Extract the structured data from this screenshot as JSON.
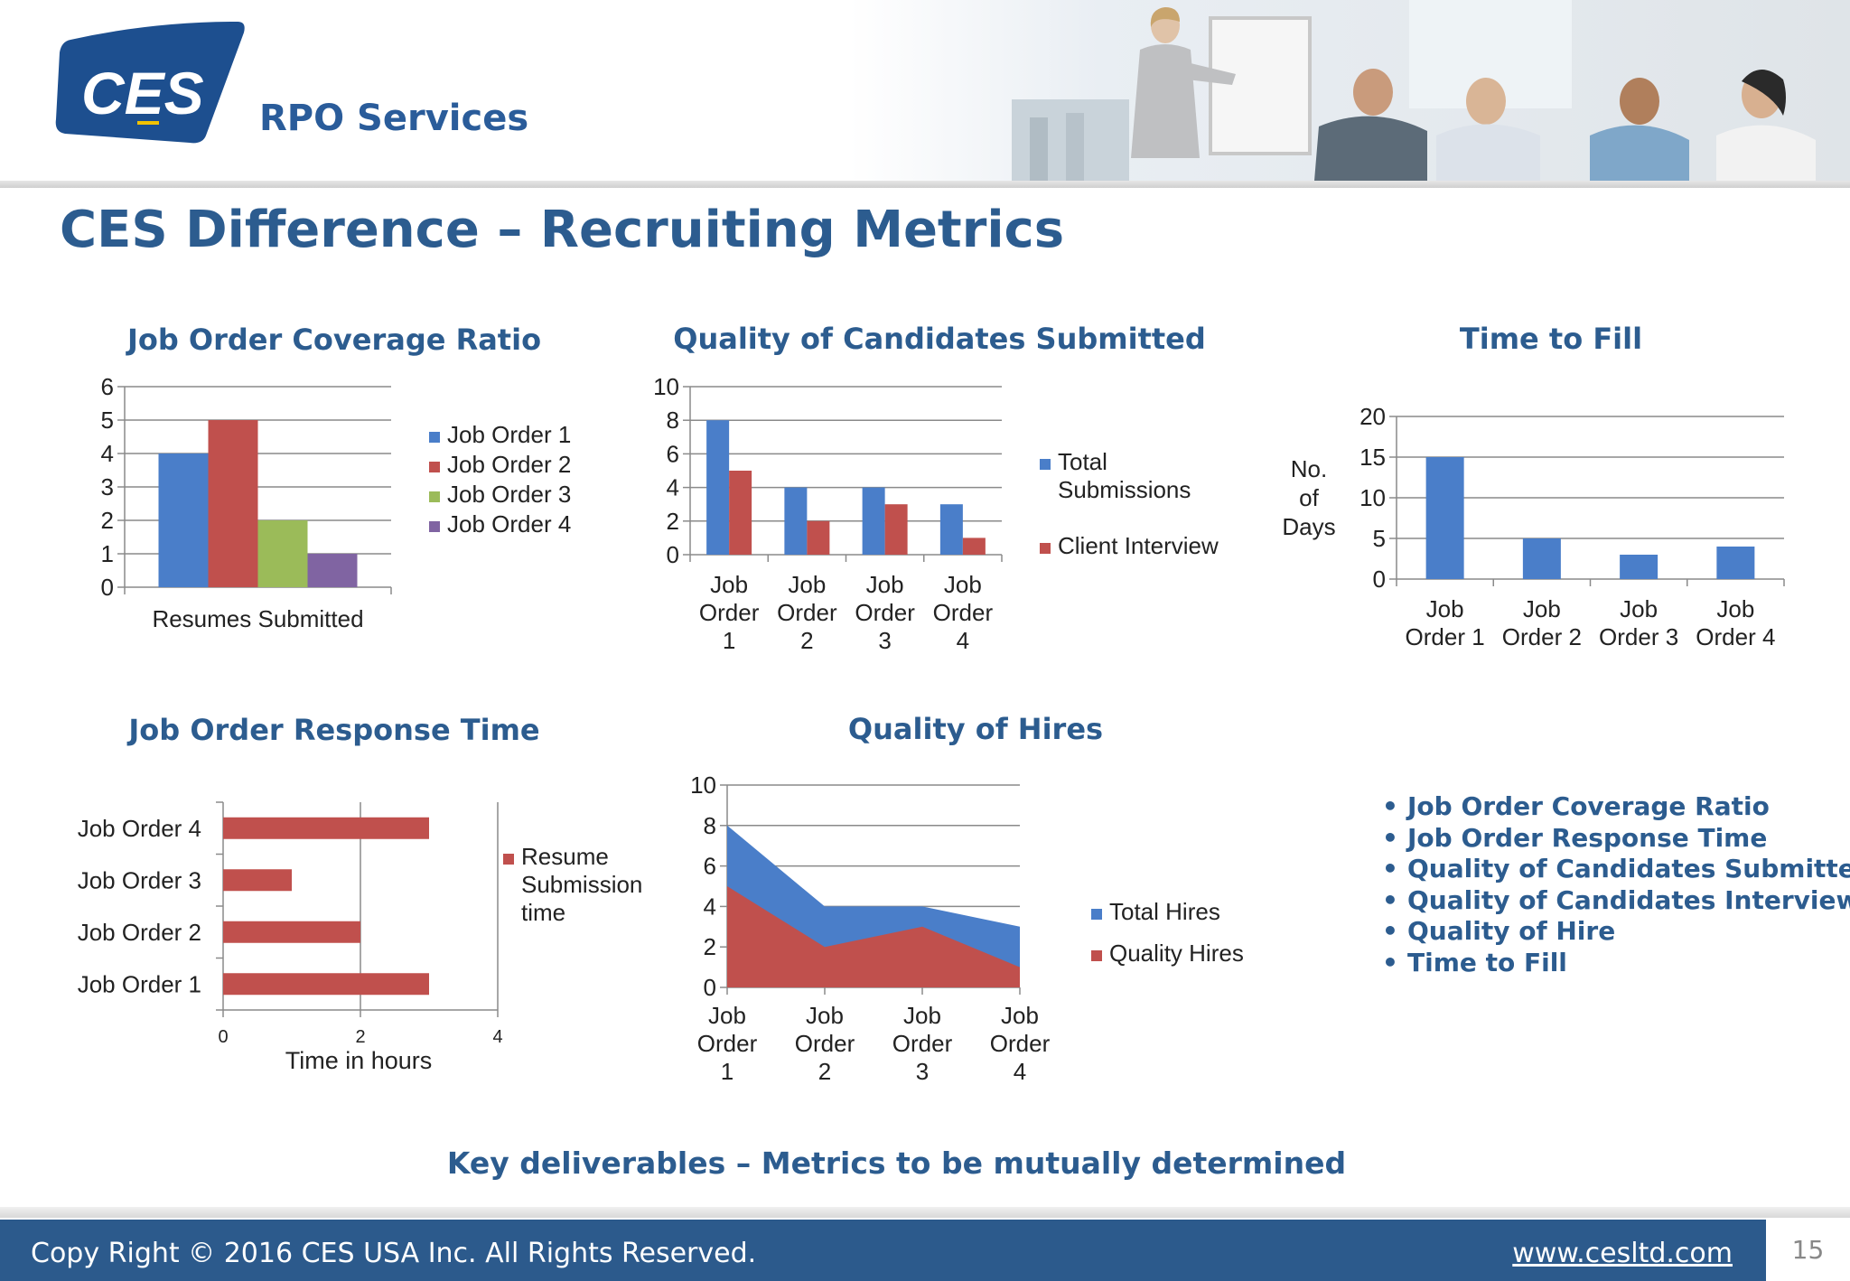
{
  "header": {
    "logo_text": "CES",
    "brand": "RPO Services",
    "title": "CES Difference – Recruiting Metrics"
  },
  "colors": {
    "blue": "#4a7ec9",
    "red": "#c0504d",
    "green": "#9bbb59",
    "purple": "#8064a2",
    "title": "#2c5c8f"
  },
  "chart_data": [
    {
      "type": "bar",
      "title": "Job Order Coverage Ratio",
      "categories": [
        "Resumes Submitted"
      ],
      "series": [
        {
          "name": "Job Order 1",
          "values": [
            4
          ],
          "color": "#4a7ec9"
        },
        {
          "name": "Job Order 2",
          "values": [
            5
          ],
          "color": "#c0504d"
        },
        {
          "name": "Job Order 3",
          "values": [
            2
          ],
          "color": "#9bbb59"
        },
        {
          "name": "Job Order 4",
          "values": [
            1
          ],
          "color": "#8064a2"
        }
      ],
      "ylim": [
        0,
        6
      ],
      "yticks": [
        "0",
        "1",
        "2",
        "3",
        "4",
        "5",
        "6"
      ],
      "grid": true,
      "legend": "right"
    },
    {
      "type": "bar",
      "title": "Quality of Candidates Submitted",
      "categories": [
        [
          "Job",
          "Order",
          "1"
        ],
        [
          "Job",
          "Order",
          "2"
        ],
        [
          "Job",
          "Order",
          "3"
        ],
        [
          "Job",
          "Order",
          "4"
        ]
      ],
      "series": [
        {
          "name": [
            "Total",
            "Submissions"
          ],
          "values": [
            8,
            4,
            4,
            3
          ],
          "color": "#4a7ec9"
        },
        {
          "name": [
            "Client Interview"
          ],
          "values": [
            5,
            2,
            3,
            1
          ],
          "color": "#c0504d"
        }
      ],
      "ylim": [
        0,
        10
      ],
      "yticks": [
        "0",
        "2",
        "4",
        "6",
        "8",
        "10"
      ],
      "grid": true,
      "legend": "right"
    },
    {
      "type": "bar",
      "title": "Time to Fill",
      "ylabel": [
        "No.",
        "of",
        "Days"
      ],
      "categories": [
        [
          "Job",
          "Order 1"
        ],
        [
          "Job",
          "Order 2"
        ],
        [
          "Job",
          "Order 3"
        ],
        [
          "Job",
          "Order 4"
        ]
      ],
      "series": [
        {
          "name": "",
          "values": [
            15,
            5,
            3,
            4
          ],
          "color": "#4a7ec9"
        }
      ],
      "ylim": [
        0,
        20
      ],
      "yticks": [
        "0",
        "5",
        "10",
        "15",
        "20"
      ],
      "grid": true,
      "legend": "none"
    },
    {
      "type": "bar",
      "orientation": "horizontal",
      "title": "Job Order Response Time",
      "xlabel": "Time in hours",
      "categories": [
        "Job Order 1",
        "Job Order 2",
        "Job Order 3",
        "Job Order 4"
      ],
      "series": [
        {
          "name": [
            "Resume",
            "Submission",
            "time"
          ],
          "values": [
            3,
            2,
            1,
            3
          ],
          "color": "#c0504d"
        }
      ],
      "xlim": [
        0,
        4
      ],
      "xticks": [
        "0",
        "2",
        "4"
      ],
      "grid": true,
      "legend": "right"
    },
    {
      "type": "area",
      "title": "Quality of Hires",
      "categories": [
        [
          "Job",
          "Order",
          "1"
        ],
        [
          "Job",
          "Order",
          "2"
        ],
        [
          "Job",
          "Order",
          "3"
        ],
        [
          "Job",
          "Order",
          "4"
        ]
      ],
      "series": [
        {
          "name": "Total Hires",
          "values": [
            8,
            4,
            4,
            3
          ],
          "color": "#4a7ec9"
        },
        {
          "name": "Quality Hires",
          "values": [
            5,
            2,
            3,
            1
          ],
          "color": "#c0504d"
        }
      ],
      "ylim": [
        0,
        10
      ],
      "yticks": [
        "0",
        "2",
        "4",
        "6",
        "8",
        "10"
      ],
      "grid": true,
      "legend": "right"
    }
  ],
  "bullets": [
    "Job Order Coverage Ratio",
    "Job Order Response Time",
    "Quality of Candidates Submitted",
    "Quality of Candidates Interviewed",
    "Quality of Hire",
    "Time to Fill"
  ],
  "key_deliverables": "Key deliverables – Metrics to be mutually determined",
  "footer": {
    "copyright": "Copy Right © 2016 CES USA Inc. All Rights Reserved.",
    "website": "www.cesltd.com",
    "page_number": "15"
  }
}
